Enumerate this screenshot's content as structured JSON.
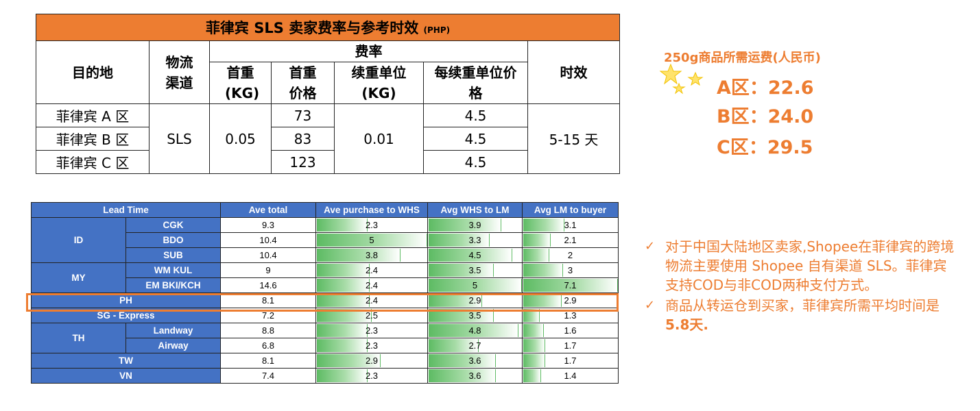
{
  "rate_table": {
    "title": "菲律宾 SLS 卖家费率与参考时效",
    "title_unit": "(PHP)",
    "headers": {
      "destination": "目的地",
      "channel": "物流渠道",
      "rate_group": "费率",
      "first_weight": "首重(KG)",
      "first_price": "首重价格",
      "additional_unit": "续重单位(KG)",
      "additional_price": "每续重单位价格",
      "time": "时效"
    },
    "rows": [
      {
        "destination": "菲律宾 A 区",
        "first_price": "73",
        "additional_price": "4.5"
      },
      {
        "destination": "菲律宾 B 区",
        "first_price": "83",
        "additional_price": "4.5"
      },
      {
        "destination": "菲律宾 C 区",
        "first_price": "123",
        "additional_price": "4.5"
      }
    ],
    "channel": "SLS",
    "first_weight": "0.05",
    "additional_unit": "0.01",
    "time": "5-15 天"
  },
  "lead_table": {
    "headers": [
      "Lead Time",
      "Ave total",
      "Ave purchase to WHS",
      "Avg WHS to LM",
      "Avg LM to buyer"
    ],
    "max_values": [
      5,
      5,
      7.1
    ],
    "rows": [
      {
        "group": "ID",
        "sub": "CGK",
        "total": "9.3",
        "purchase": 2.3,
        "whs_lm": 3.9,
        "lm_buyer": 3.1
      },
      {
        "group": "ID",
        "sub": "BDO",
        "total": "10.4",
        "purchase": 5,
        "whs_lm": 3.3,
        "lm_buyer": 2.1
      },
      {
        "group": "ID",
        "sub": "SUB",
        "total": "10.4",
        "purchase": 3.8,
        "whs_lm": 4.5,
        "lm_buyer": 2
      },
      {
        "group": "MY",
        "sub": "WM KUL",
        "total": "9",
        "purchase": 2.4,
        "whs_lm": 3.5,
        "lm_buyer": 3
      },
      {
        "group": "MY",
        "sub": "EM BKI/KCH",
        "total": "14.6",
        "purchase": 2.4,
        "whs_lm": 5,
        "lm_buyer": 7.1
      },
      {
        "group": "PH",
        "sub": "",
        "total": "8.1",
        "purchase": 2.4,
        "whs_lm": 2.9,
        "lm_buyer": 2.9
      },
      {
        "group": "SG - Express",
        "sub": "",
        "total": "7.2",
        "purchase": 2.5,
        "whs_lm": 3.5,
        "lm_buyer": 1.3
      },
      {
        "group": "TH",
        "sub": "Landway",
        "total": "8.8",
        "purchase": 2.3,
        "whs_lm": 4.8,
        "lm_buyer": 1.6
      },
      {
        "group": "TH",
        "sub": "Airway",
        "total": "6.8",
        "purchase": 2.3,
        "whs_lm": 2.7,
        "lm_buyer": 1.7
      },
      {
        "group": "TW",
        "sub": "",
        "total": "8.1",
        "purchase": 2.9,
        "whs_lm": 3.6,
        "lm_buyer": 1.7
      },
      {
        "group": "VN",
        "sub": "",
        "total": "7.4",
        "purchase": 2.3,
        "whs_lm": 3.6,
        "lm_buyer": 1.4
      }
    ],
    "highlight_row": "PH",
    "highlight_color": "#ED7D31",
    "header_color": "#4472C4",
    "bar_color": "#5DBB63"
  },
  "shipping_fee": {
    "title": "250g商品所需运费(人民币)",
    "zones": [
      "A区：22.6",
      "B区：24.0",
      "C区：29.5"
    ]
  },
  "notes": [
    {
      "text": "对于中国大陆地区卖家,Shopee在菲律宾的跨境物流主要使用 Shopee 自有渠道 SLS。菲律宾支持COD与非COD两种支付方式。",
      "bold": ""
    },
    {
      "text": "商品从转运仓到买家，菲律宾所需平均时间是",
      "bold": "5.8天."
    }
  ],
  "accent_color": "#ED7D31"
}
